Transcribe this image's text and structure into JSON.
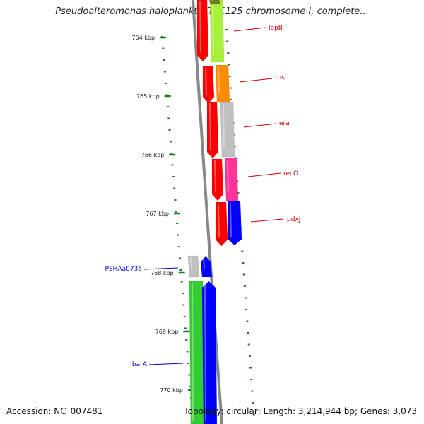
{
  "title": "Pseudoalteromonas haloplanktis TAC125 chromosome I, complete...",
  "footer": {
    "accession": "Accession: NC_007481",
    "summary": "Topology: circular; Length: 3,214,944 bp; Genes: 3,073"
  },
  "colors": {
    "backbone": "#888888",
    "tick_dots": "#1f7a1f",
    "forward_label": "#cc0000",
    "reverse_label": "#0000cc",
    "gene_red": "#ff0000",
    "gene_lime": "#a8f03c",
    "gene_orange": "#ff8c00",
    "gene_gray": "#c0c0c0",
    "gene_pink": "#ff3399",
    "gene_blue": "#0000ff",
    "gene_green": "#33cc33"
  },
  "scale": {
    "tick_labels": [
      "764 kbp",
      "765 kbp",
      "766 kbp",
      "767 kbp",
      "768 kbp",
      "769 kbp",
      "770 kbp"
    ]
  },
  "genes": [
    {
      "name": "lepB",
      "strand": "forward",
      "color": "gene_lime"
    },
    {
      "name": "rnc",
      "strand": "forward",
      "color": "gene_orange"
    },
    {
      "name": "era",
      "strand": "forward",
      "color": "gene_gray"
    },
    {
      "name": "recO",
      "strand": "forward",
      "color": "gene_pink"
    },
    {
      "name": "pdxJ",
      "strand": "forward",
      "color": "gene_blue"
    },
    {
      "name": "PSHAa0736",
      "strand": "reverse",
      "color": "gene_gray"
    },
    {
      "name": "barA",
      "strand": "reverse",
      "color": "gene_green"
    }
  ]
}
